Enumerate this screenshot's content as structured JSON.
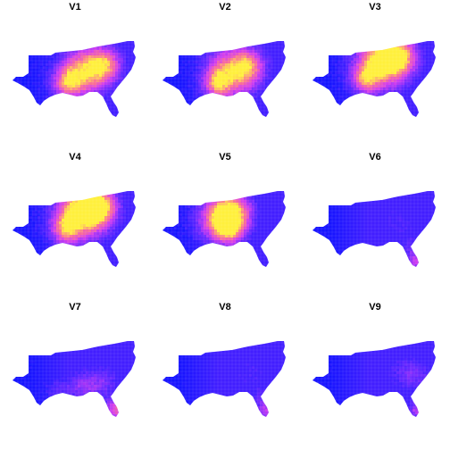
{
  "figure": {
    "region": "Southeastern United States",
    "colormap": "plasma (blue → magenta → yellow)",
    "panels": [
      {
        "label": "V1",
        "hotspot": "center-east",
        "intensity": 0.85
      },
      {
        "label": "V2",
        "hotspot": "center",
        "intensity": 0.8
      },
      {
        "label": "V3",
        "hotspot": "center-north",
        "intensity": 0.9
      },
      {
        "label": "V4",
        "hotspot": "center-north",
        "intensity": 0.95
      },
      {
        "label": "V5",
        "hotspot": "center-west",
        "intensity": 0.9
      },
      {
        "label": "V6",
        "hotspot": "florida",
        "intensity": 0.55
      },
      {
        "label": "V7",
        "hotspot": "florida-gulf",
        "intensity": 0.7
      },
      {
        "label": "V8",
        "hotspot": "florida",
        "intensity": 0.55
      },
      {
        "label": "V9",
        "hotspot": "east-florida",
        "intensity": 0.55
      }
    ]
  },
  "colors": {
    "low": "#1a1aff",
    "mid": "#cc33ff",
    "high": "#ffff33",
    "background": "#ffffff"
  }
}
